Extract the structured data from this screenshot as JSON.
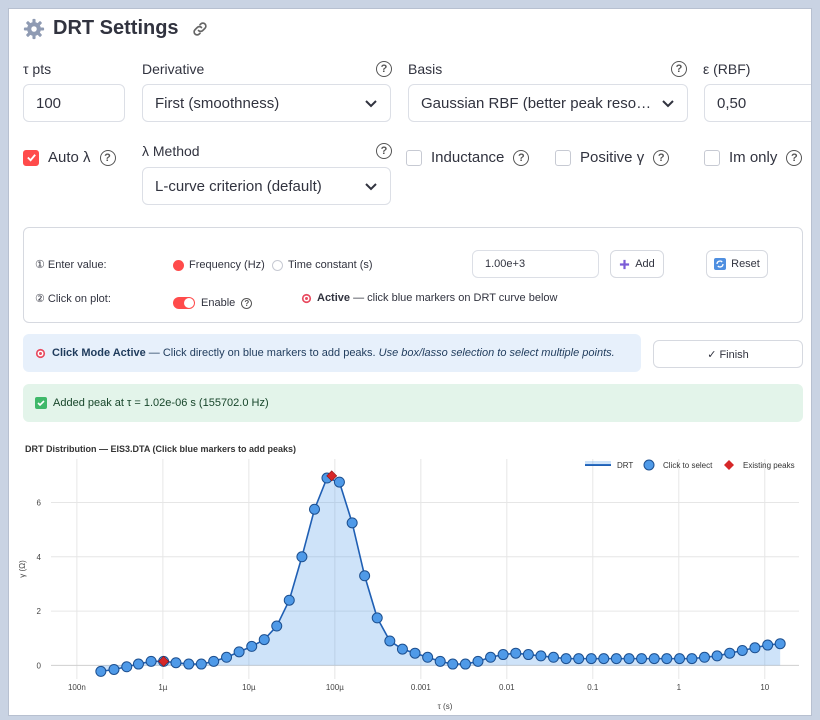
{
  "header": {
    "title": "DRT Settings"
  },
  "fields": {
    "tau_pts": {
      "label": "τ pts",
      "value": "100"
    },
    "derivative": {
      "label": "Derivative",
      "value": "First (smoothness)"
    },
    "basis": {
      "label": "Basis",
      "value": "Gaussian RBF (better peak resolution)"
    },
    "epsilon": {
      "label": "ε (RBF)",
      "value": "0,50"
    },
    "auto_lambda": {
      "label": "Auto λ",
      "checked": true
    },
    "lambda_method": {
      "label": "λ Method",
      "value": "L-curve criterion (default)"
    },
    "inductance": {
      "label": "Inductance",
      "checked": false
    },
    "positive_gamma": {
      "label": "Positive γ",
      "checked": false
    },
    "im_only": {
      "label": "Im only",
      "checked": false
    }
  },
  "peak_panel": {
    "step1": "① Enter value:",
    "radio_frequency": "Frequency (Hz)",
    "radio_time": "Time constant (s)",
    "value_input": "1.00e+3",
    "add_button": "Add",
    "reset_button": "Reset",
    "step2": "② Click on plot:",
    "enable_label": "Enable",
    "active_label": "Active",
    "active_text": " — click blue markers on DRT curve below"
  },
  "info_banner": {
    "bold": "Click Mode Active",
    "text": " — Click directly on blue markers to add peaks. ",
    "italic": "Use box/lasso selection to select multiple points."
  },
  "finish_button": "✓ Finish",
  "success_message": "Added peak at τ = 1.02e-06 s (155702.0 Hz)",
  "colors": {
    "accent": "#ff4b4b",
    "drt_line": "#1f5fb4",
    "marker": "#4f9ae8",
    "peak": "#d62728"
  },
  "chart_data": {
    "type": "line",
    "title": "DRT Distribution — EIS3.DTA (Click blue markers to add peaks)",
    "xlabel": "τ (s)",
    "ylabel": "γ (Ω)",
    "xscale": "log",
    "xlim": [
      5e-08,
      25
    ],
    "ylim": [
      -0.5,
      7.6
    ],
    "x_ticks": [
      {
        "v": 1e-07,
        "label": "100n"
      },
      {
        "v": 1e-06,
        "label": "1µ"
      },
      {
        "v": 1e-05,
        "label": "10µ"
      },
      {
        "v": 0.0001,
        "label": "100µ"
      },
      {
        "v": 0.001,
        "label": "0.001"
      },
      {
        "v": 0.01,
        "label": "0.01"
      },
      {
        "v": 0.1,
        "label": "0.1"
      },
      {
        "v": 1,
        "label": "1"
      },
      {
        "v": 10,
        "label": "10"
      }
    ],
    "y_ticks": [
      0,
      2,
      4,
      6
    ],
    "legend": {
      "placement": "top-right",
      "entries": [
        "DRT",
        "Click to select",
        "Existing peaks"
      ]
    },
    "series": [
      {
        "name": "DRT",
        "x": [
          1.9e-07,
          2.7e-07,
          3.8e-07,
          5.2e-07,
          7.3e-07,
          1.02e-06,
          1.42e-06,
          2e-06,
          2.8e-06,
          3.9e-06,
          5.5e-06,
          7.7e-06,
          1.08e-05,
          1.51e-05,
          2.11e-05,
          2.95e-05,
          4.14e-05,
          5.8e-05,
          8.1e-05,
          0.000113,
          0.000159,
          0.000222,
          0.000311,
          0.000436,
          0.000611,
          0.000856,
          0.0012,
          0.00168,
          0.00235,
          0.0033,
          0.00462,
          0.00647,
          0.00906,
          0.0127,
          0.0178,
          0.0249,
          0.0349,
          0.0489,
          0.0685,
          0.096,
          0.134,
          0.188,
          0.264,
          0.369,
          0.518,
          0.725,
          1.02,
          1.42,
          1.99,
          2.79,
          3.91,
          5.48,
          7.68,
          10.8,
          15.1
        ],
        "y": [
          -0.22,
          -0.15,
          -0.05,
          0.05,
          0.15,
          0.15,
          0.1,
          0.05,
          0.05,
          0.15,
          0.3,
          0.5,
          0.7,
          0.95,
          1.45,
          2.4,
          4.0,
          5.75,
          6.9,
          6.75,
          5.25,
          3.3,
          1.75,
          0.9,
          0.6,
          0.45,
          0.3,
          0.15,
          0.05,
          0.05,
          0.15,
          0.3,
          0.4,
          0.45,
          0.4,
          0.35,
          0.3,
          0.25,
          0.25,
          0.25,
          0.25,
          0.25,
          0.25,
          0.25,
          0.25,
          0.25,
          0.25,
          0.25,
          0.3,
          0.35,
          0.45,
          0.55,
          0.65,
          0.75,
          0.8
        ]
      },
      {
        "name": "Existing peaks",
        "x": [
          1.02e-06,
          9.2e-05
        ],
        "y": [
          0.15,
          6.98
        ]
      }
    ]
  }
}
